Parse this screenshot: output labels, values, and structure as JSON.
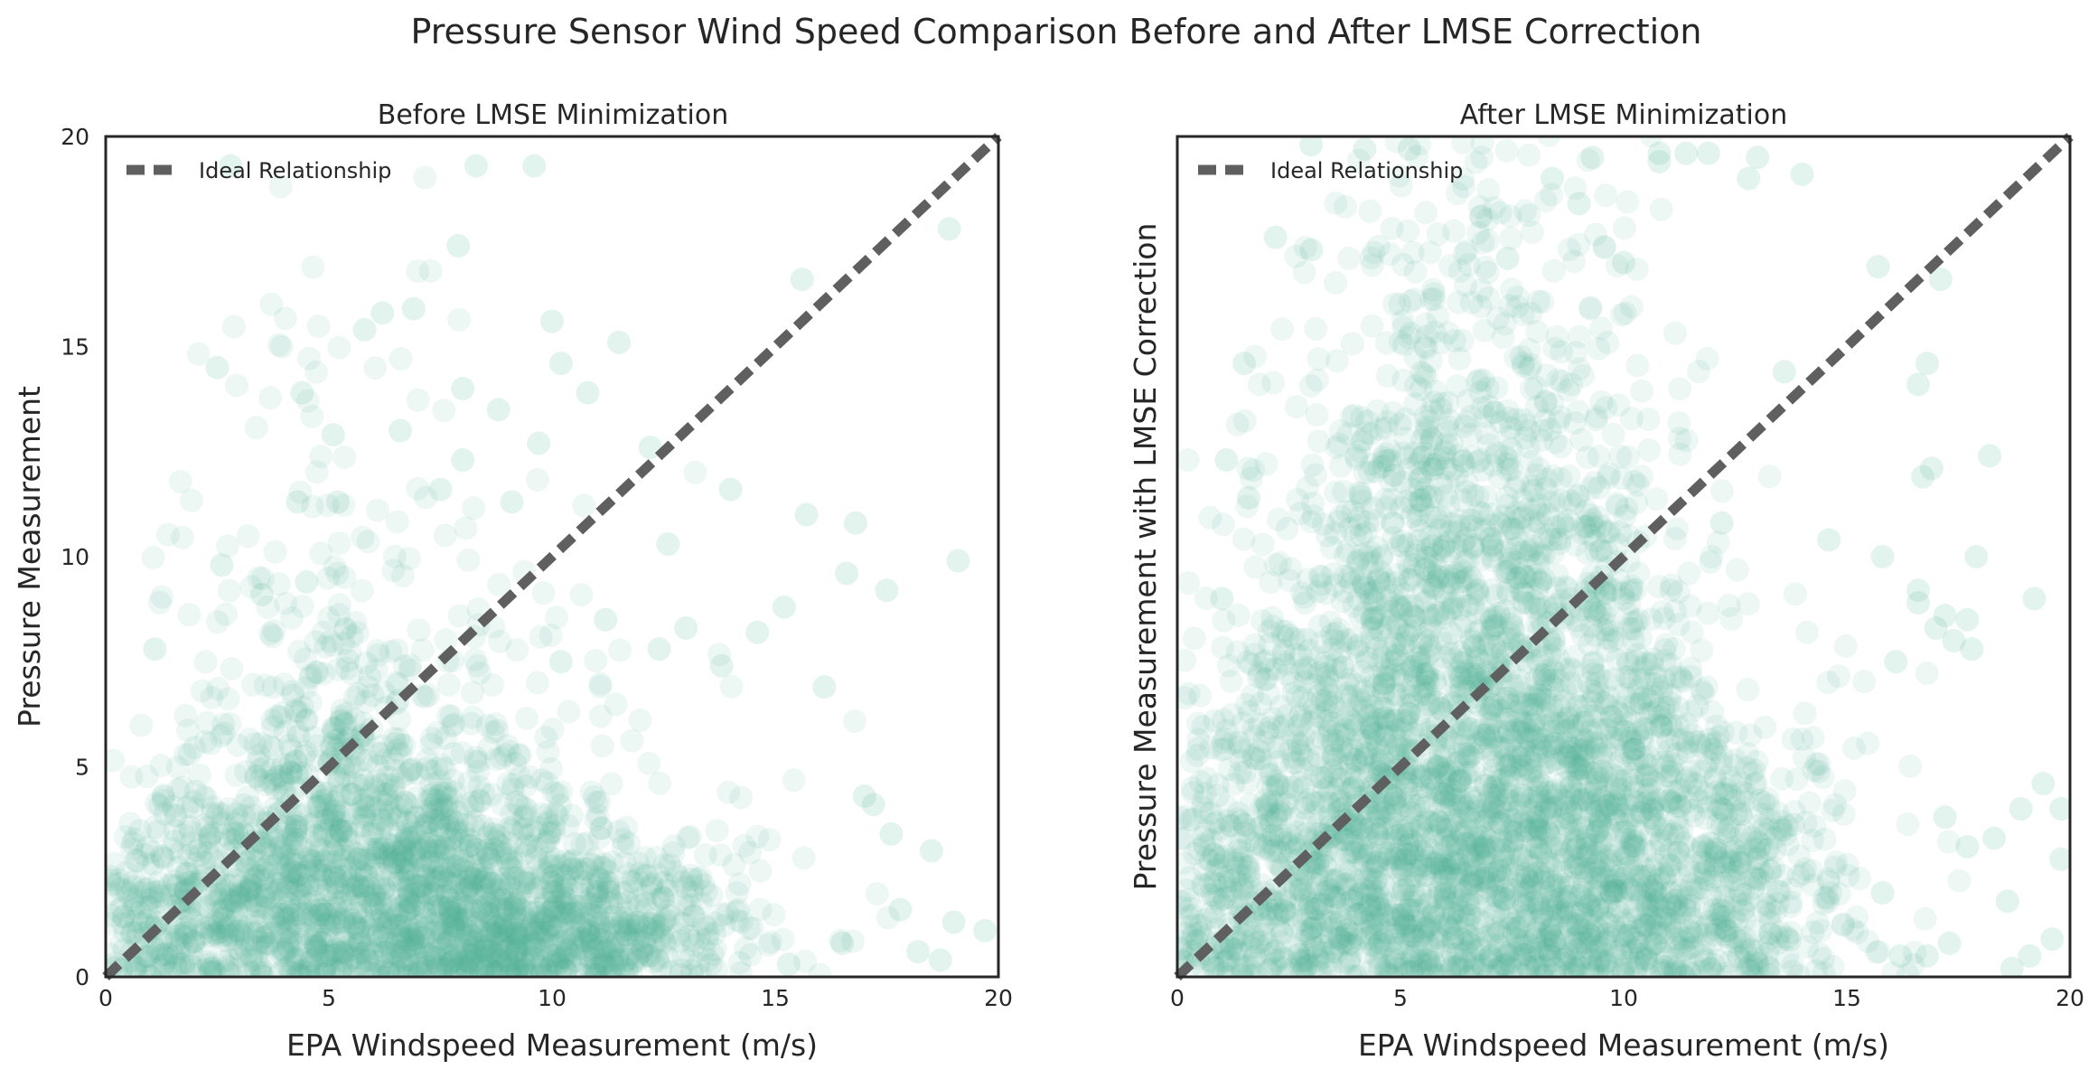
{
  "figure": {
    "suptitle": "Pressure Sensor Wind Speed Comparison Before and After LMSE Correction"
  },
  "colors": {
    "points": "#52b394",
    "ideal_line": "#5f5f5f",
    "axes": "#262626"
  },
  "chart_data": [
    {
      "type": "scatter",
      "title": "Before LMSE Minimization",
      "xlabel": "EPA Windspeed Measurement (m/s)",
      "ylabel": "Pressure Measurement",
      "xlim": [
        0,
        20
      ],
      "ylim": [
        0,
        20
      ],
      "xticks": [
        "0",
        "5",
        "10",
        "15",
        "20"
      ],
      "yticks": [
        "0",
        "5",
        "10",
        "15",
        "20"
      ],
      "grid": false,
      "legend": {
        "position": "top-left",
        "entries": [
          "Ideal Relationship"
        ]
      },
      "ideal_line": {
        "x": [
          0,
          20
        ],
        "y": [
          0,
          20
        ],
        "style": "dashed"
      },
      "series": [
        {
          "points": [
            [
              2.8,
              19.3
            ],
            [
              8.3,
              19.3
            ],
            [
              9.6,
              19.3
            ],
            [
              15.6,
              16.6
            ],
            [
              18.9,
              17.8
            ],
            [
              7.9,
              17.4
            ],
            [
              6.2,
              15.8
            ],
            [
              6.9,
              15.9
            ],
            [
              5.8,
              15.4
            ],
            [
              10.0,
              15.6
            ],
            [
              11.5,
              15.1
            ],
            [
              10.2,
              14.6
            ],
            [
              2.5,
              14.5
            ],
            [
              4.4,
              13.9
            ],
            [
              8.0,
              14.0
            ],
            [
              8.8,
              13.5
            ],
            [
              10.8,
              13.9
            ],
            [
              6.6,
              13.0
            ],
            [
              5.1,
              12.9
            ],
            [
              9.7,
              12.7
            ],
            [
              12.2,
              12.6
            ],
            [
              8.0,
              12.3
            ],
            [
              14.0,
              11.6
            ],
            [
              4.3,
              11.3
            ],
            [
              5.2,
              11.3
            ],
            [
              7.5,
              11.6
            ],
            [
              9.1,
              11.3
            ],
            [
              12.6,
              10.3
            ],
            [
              15.7,
              11.0
            ],
            [
              16.8,
              10.8
            ],
            [
              19.1,
              9.9
            ],
            [
              16.6,
              9.6
            ],
            [
              17.5,
              9.2
            ],
            [
              3.5,
              9.1
            ],
            [
              4.5,
              9.4
            ],
            [
              1.1,
              7.8
            ],
            [
              2.6,
              9.8
            ],
            [
              13.0,
              8.3
            ],
            [
              11.2,
              8.5
            ],
            [
              14.6,
              8.2
            ],
            [
              15.2,
              8.8
            ],
            [
              16.1,
              6.9
            ],
            [
              13.8,
              7.4
            ],
            [
              10.2,
              7.5
            ],
            [
              12.4,
              7.8
            ],
            [
              17.0,
              4.3
            ],
            [
              17.2,
              4.1
            ],
            [
              17.6,
              3.4
            ],
            [
              18.5,
              3.0
            ],
            [
              19.0,
              1.3
            ],
            [
              19.7,
              1.1
            ],
            [
              18.7,
              0.4
            ],
            [
              15.3,
              0.3
            ],
            [
              16.5,
              0.8
            ],
            [
              17.8,
              1.6
            ],
            [
              18.2,
              0.6
            ]
          ]
        }
      ]
    },
    {
      "type": "scatter",
      "title": "After LMSE Minimization",
      "xlabel": "EPA Windspeed Measurement (m/s)",
      "ylabel": "Pressure Measurement with LMSE Correction",
      "xlim": [
        0,
        20
      ],
      "ylim": [
        0,
        20
      ],
      "xticks": [
        "0",
        "5",
        "10",
        "15",
        "20"
      ],
      "yticks": [],
      "grid": false,
      "legend": {
        "position": "top-left",
        "entries": [
          "Ideal Relationship"
        ]
      },
      "ideal_line": {
        "x": [
          0,
          20
        ],
        "y": [
          0,
          20
        ],
        "style": "dashed"
      },
      "series": [
        {
          "points": [
            [
              3.0,
              19.8
            ],
            [
              4.2,
              19.7
            ],
            [
              5.2,
              19.7
            ],
            [
              9.3,
              19.5
            ],
            [
              10.8,
              19.4
            ],
            [
              10.8,
              19.6
            ],
            [
              11.4,
              19.6
            ],
            [
              11.9,
              19.6
            ],
            [
              13.0,
              19.5
            ],
            [
              14.0,
              19.1
            ],
            [
              12.8,
              19.0
            ],
            [
              8.4,
              19.0
            ],
            [
              9.0,
              18.4
            ],
            [
              2.2,
              17.6
            ],
            [
              3.0,
              17.3
            ],
            [
              7.4,
              17.1
            ],
            [
              10.0,
              17.0
            ],
            [
              15.7,
              16.9
            ],
            [
              17.1,
              16.6
            ],
            [
              16.6,
              14.1
            ],
            [
              13.6,
              14.4
            ],
            [
              16.8,
              14.6
            ],
            [
              18.2,
              12.4
            ],
            [
              16.7,
              11.9
            ],
            [
              16.9,
              12.1
            ],
            [
              12.2,
              10.8
            ],
            [
              14.6,
              10.4
            ],
            [
              15.8,
              10.0
            ],
            [
              16.6,
              9.2
            ],
            [
              17.9,
              10.0
            ],
            [
              19.2,
              9.0
            ],
            [
              16.6,
              8.9
            ],
            [
              17.2,
              8.6
            ],
            [
              17.0,
              8.3
            ],
            [
              17.7,
              8.5
            ],
            [
              17.4,
              8.0
            ],
            [
              17.8,
              7.8
            ],
            [
              16.1,
              7.5
            ],
            [
              1.1,
              12.3
            ],
            [
              1.0,
              9.0
            ],
            [
              1.6,
              11.4
            ],
            [
              1.5,
              14.6
            ],
            [
              19.8,
              4.0
            ],
            [
              19.8,
              2.8
            ],
            [
              19.4,
              4.6
            ],
            [
              18.9,
              4.0
            ],
            [
              18.3,
              3.3
            ],
            [
              17.7,
              3.1
            ],
            [
              17.2,
              3.8
            ],
            [
              18.6,
              1.8
            ],
            [
              19.6,
              0.9
            ],
            [
              19.1,
              0.5
            ],
            [
              18.7,
              0.2
            ],
            [
              17.3,
              0.8
            ],
            [
              16.8,
              0.5
            ],
            [
              16.2,
              0.5
            ],
            [
              15.8,
              2.0
            ]
          ]
        }
      ]
    }
  ]
}
